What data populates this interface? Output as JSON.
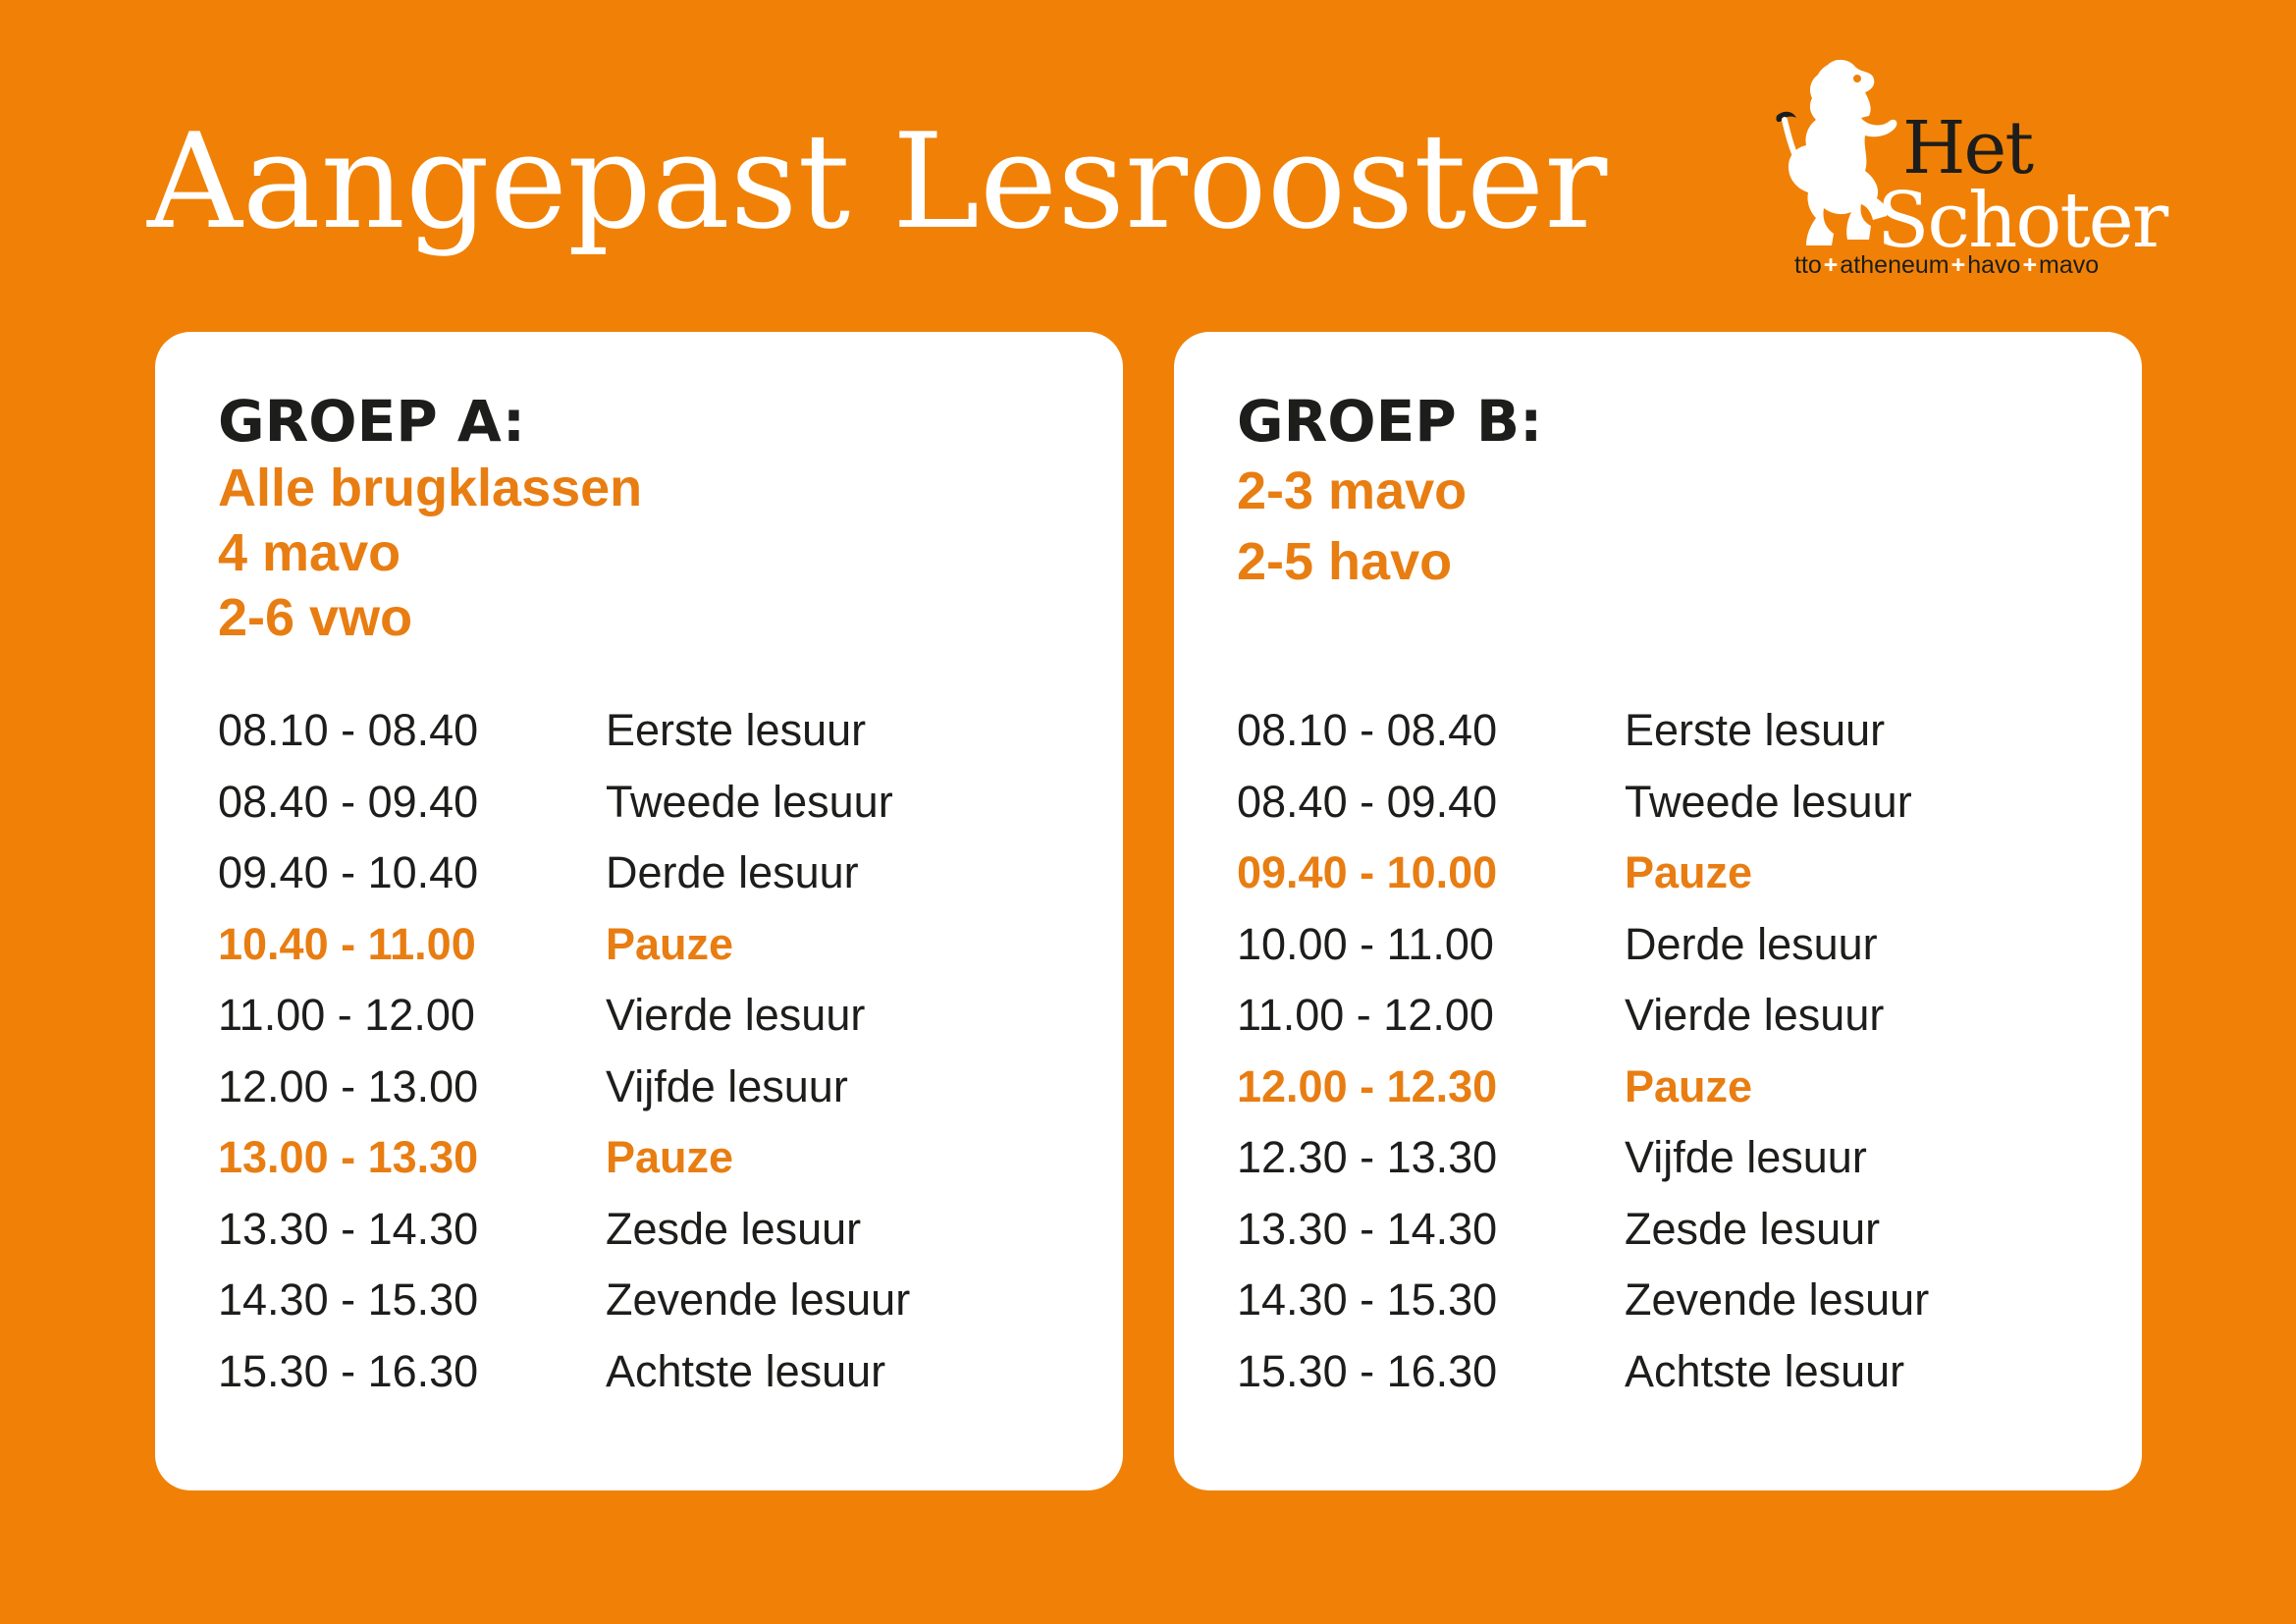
{
  "title": "Aangepast Lesrooster",
  "logo": {
    "word_het": "Het",
    "word_schoter": "Schoter",
    "tagline": [
      "tto",
      "atheneum",
      "havo",
      "mavo"
    ],
    "icon": "lion-icon"
  },
  "colors": {
    "background": "#f08106",
    "accent": "#e87d12",
    "text": "#1d1d1b",
    "card": "#ffffff"
  },
  "groups": [
    {
      "heading": "GROEP A:",
      "subtitle": [
        "Alle brugklassen",
        "4 mavo",
        "2-6 vwo"
      ],
      "schedule": [
        {
          "time": "08.10 - 08.40",
          "label": "Eerste lesuur",
          "break": false
        },
        {
          "time": "08.40 - 09.40",
          "label": "Tweede lesuur",
          "break": false
        },
        {
          "time": "09.40 - 10.40",
          "label": "Derde lesuur",
          "break": false
        },
        {
          "time": "10.40 - 11.00",
          "label": "Pauze",
          "break": true
        },
        {
          "time": "11.00 - 12.00",
          "label": "Vierde lesuur",
          "break": false
        },
        {
          "time": "12.00 - 13.00",
          "label": "Vijfde lesuur",
          "break": false
        },
        {
          "time": "13.00 - 13.30",
          "label": "Pauze",
          "break": true
        },
        {
          "time": "13.30 - 14.30",
          "label": "Zesde lesuur",
          "break": false
        },
        {
          "time": "14.30 - 15.30",
          "label": "Zevende lesuur",
          "break": false
        },
        {
          "time": "15.30 - 16.30",
          "label": "Achtste lesuur",
          "break": false
        }
      ]
    },
    {
      "heading": "GROEP B:",
      "subtitle": [
        "2-3 mavo",
        "2-5 havo"
      ],
      "schedule": [
        {
          "time": "08.10 - 08.40",
          "label": "Eerste lesuur",
          "break": false
        },
        {
          "time": "08.40 - 09.40",
          "label": "Tweede lesuur",
          "break": false
        },
        {
          "time": "09.40 - 10.00",
          "label": "Pauze",
          "break": true
        },
        {
          "time": "10.00 - 11.00",
          "label": "Derde lesuur",
          "break": false
        },
        {
          "time": "11.00 - 12.00",
          "label": "Vierde lesuur",
          "break": false
        },
        {
          "time": "12.00 - 12.30",
          "label": "Pauze",
          "break": true
        },
        {
          "time": "12.30 - 13.30",
          "label": "Vijfde lesuur",
          "break": false
        },
        {
          "time": "13.30 - 14.30",
          "label": "Zesde lesuur",
          "break": false
        },
        {
          "time": "14.30 - 15.30",
          "label": "Zevende lesuur",
          "break": false
        },
        {
          "time": "15.30 - 16.30",
          "label": "Achtste lesuur",
          "break": false
        }
      ]
    }
  ]
}
